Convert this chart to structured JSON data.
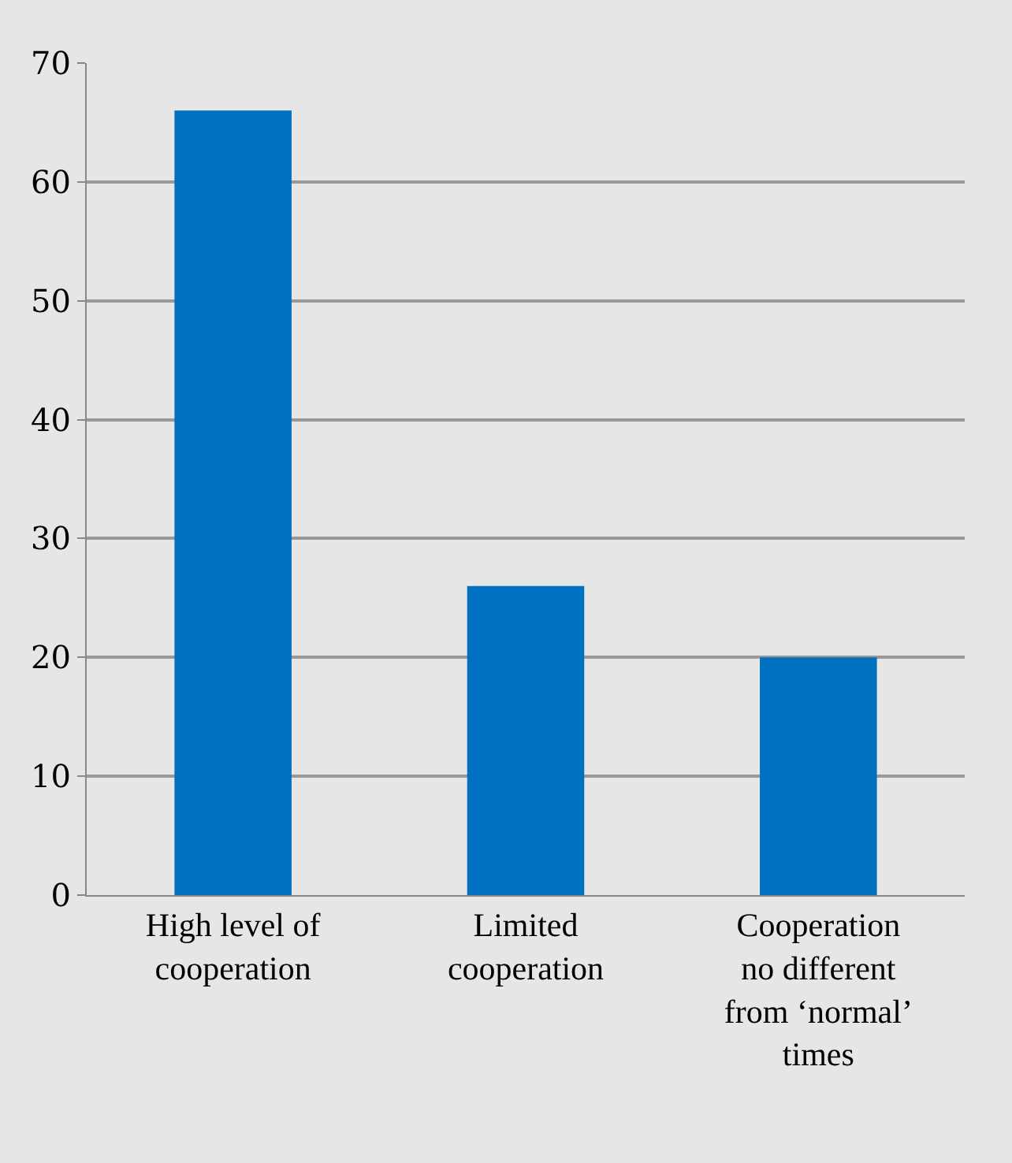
{
  "chart_data": {
    "type": "bar",
    "categories": [
      "High level of cooperation",
      "Limited cooperation",
      "Cooperation no different from ‘normal’ times"
    ],
    "values": [
      66,
      26,
      20
    ],
    "color": "#0070c0",
    "ylim": [
      0,
      70
    ],
    "yticks": [
      0,
      10,
      20,
      30,
      40,
      50,
      60,
      70
    ],
    "grid": "y"
  }
}
